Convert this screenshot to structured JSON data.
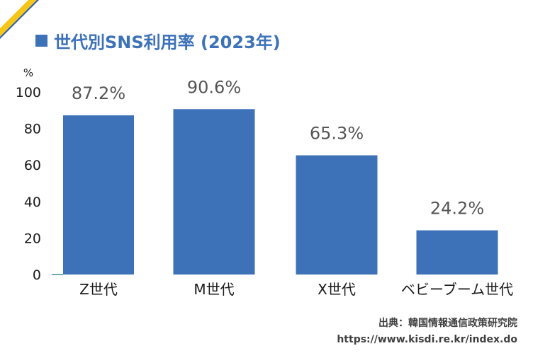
{
  "title": "世代別SNS利用率 (2023年)",
  "source_line1": "出典：韓国情報通信政策研究院",
  "source_line2": "https://www.kisdi.re.kr/index.do",
  "colors": {
    "bar": "#3d72b8",
    "title": "#3d72b8",
    "corner_yellow": "#f5c518",
    "corner_blue": "#2e5fa8"
  },
  "chart_data": {
    "type": "bar",
    "title": "世代別SNS利用率 (2023年)",
    "categories": [
      "Z世代",
      "M世代",
      "X世代",
      "ベビーブーム世代"
    ],
    "values": [
      87.2,
      90.6,
      65.3,
      24.2
    ],
    "data_labels": [
      "87.2%",
      "90.6%",
      "65.3%",
      "24.2%"
    ],
    "y_unit": "%",
    "yticks": [
      0,
      20,
      40,
      60,
      80,
      100
    ],
    "ylim": [
      0,
      100
    ],
    "xlabel": "",
    "ylabel": "",
    "grid": false,
    "legend": "none"
  }
}
